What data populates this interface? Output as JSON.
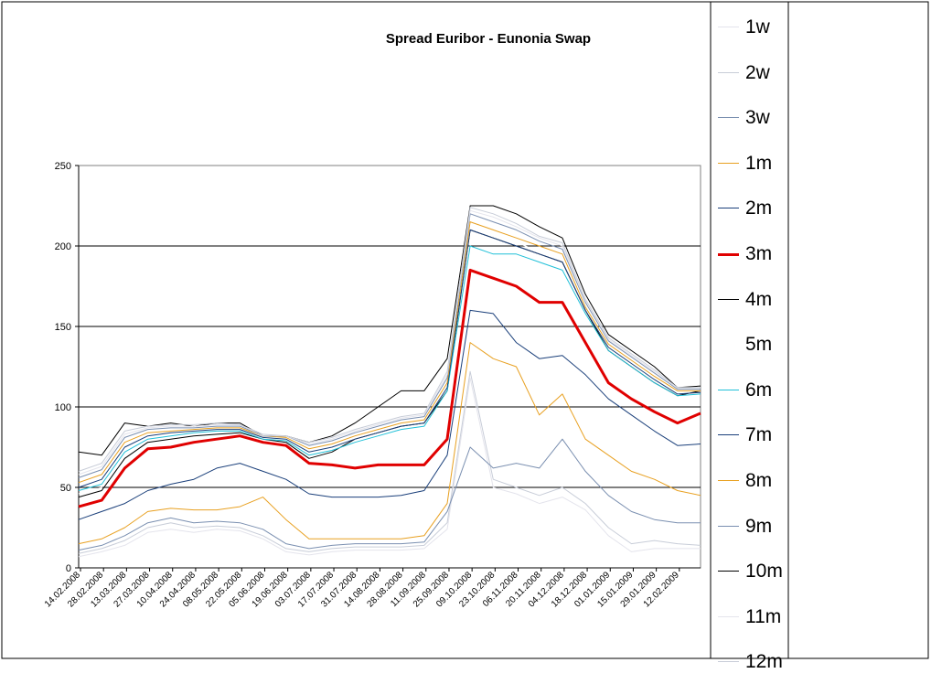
{
  "chart_data": {
    "type": "line",
    "title": "Spread Euribor - Eunonia Swap",
    "xlabel": "",
    "ylabel": "",
    "ylim": [
      0,
      250
    ],
    "yticks": [
      0,
      50,
      100,
      150,
      200,
      250
    ],
    "gridlines": [
      50,
      100,
      150,
      200
    ],
    "x_tick_labels": [
      "14.02.2008",
      "28.02.2008",
      "13.03.2008",
      "27.03.2008",
      "10.04.2008",
      "24.04.2008",
      "08.05.2008",
      "22.05.2008",
      "05.06.2008",
      "19.06.2008",
      "03.07.2008",
      "17.07.2008",
      "31.07.2008",
      "14.08.2008",
      "28.08.2008",
      "11.09.2008",
      "25.09.2008",
      "09.10.2008",
      "23.10.2008",
      "06.11.2008",
      "20.11.2008",
      "04.12.2008",
      "18.12.2008",
      "01.01.2009",
      "15.01.2009",
      "29.01.2009",
      "12.02.2009"
    ],
    "x_points": [
      0,
      1,
      2,
      3,
      4,
      5,
      6,
      7,
      8,
      9,
      10,
      11,
      12,
      13,
      14,
      15,
      16,
      17,
      18,
      19,
      20,
      21,
      22,
      23,
      24,
      25,
      26,
      27
    ],
    "series": [
      {
        "name": "1w",
        "color": "#e4e4ec",
        "width": 1,
        "values": [
          7,
          10,
          14,
          22,
          24,
          22,
          24,
          23,
          18,
          10,
          8,
          10,
          11,
          11,
          11,
          12,
          24,
          118,
          50,
          46,
          40,
          44,
          36,
          20,
          10,
          12,
          12,
          12
        ]
      },
      {
        "name": "2w",
        "color": "#c8cdd8",
        "width": 1,
        "values": [
          9,
          12,
          17,
          25,
          28,
          25,
          26,
          25,
          20,
          12,
          10,
          12,
          13,
          13,
          13,
          14,
          28,
          122,
          55,
          50,
          45,
          50,
          40,
          25,
          15,
          17,
          15,
          14
        ]
      },
      {
        "name": "3w",
        "color": "#7a8fb0",
        "width": 1,
        "values": [
          11,
          14,
          20,
          28,
          31,
          28,
          29,
          28,
          24,
          15,
          12,
          14,
          15,
          15,
          15,
          16,
          35,
          75,
          62,
          65,
          62,
          80,
          60,
          45,
          35,
          30,
          28,
          28
        ]
      },
      {
        "name": "1m",
        "color": "#e8a020",
        "width": 1,
        "values": [
          15,
          18,
          25,
          35,
          37,
          36,
          36,
          38,
          44,
          30,
          18,
          18,
          18,
          18,
          18,
          20,
          40,
          140,
          130,
          125,
          95,
          108,
          80,
          70,
          60,
          55,
          48,
          45
        ]
      },
      {
        "name": "2m",
        "color": "#1a3f7a",
        "width": 1,
        "values": [
          30,
          35,
          40,
          48,
          52,
          55,
          62,
          65,
          60,
          55,
          46,
          44,
          44,
          44,
          45,
          48,
          70,
          160,
          158,
          140,
          130,
          132,
          120,
          105,
          95,
          85,
          76,
          77
        ]
      },
      {
        "name": "3m",
        "color": "#e00000",
        "width": 3,
        "values": [
          38,
          42,
          62,
          74,
          75,
          78,
          80,
          82,
          78,
          76,
          65,
          64,
          62,
          64,
          64,
          64,
          80,
          185,
          180,
          175,
          165,
          165,
          140,
          115,
          105,
          97,
          90,
          96
        ]
      },
      {
        "name": "4m",
        "color": "#000000",
        "width": 1,
        "values": [
          44,
          48,
          68,
          78,
          80,
          82,
          83,
          84,
          80,
          78,
          68,
          72,
          80,
          84,
          88,
          90,
          110,
          210,
          205,
          200,
          195,
          190,
          160,
          135,
          125,
          115,
          107,
          110
        ]
      },
      {
        "name": "5m",
        "color": "#ffffff",
        "width": 1,
        "values": [
          46,
          50,
          70,
          80,
          82,
          84,
          85,
          85,
          81,
          79,
          70,
          74,
          82,
          86,
          90,
          92,
          112,
          212,
          207,
          202,
          197,
          192,
          162,
          137,
          127,
          117,
          109,
          112
        ]
      },
      {
        "name": "6m",
        "color": "#20c0d8",
        "width": 1,
        "values": [
          48,
          52,
          72,
          80,
          82,
          84,
          85,
          85,
          80,
          79,
          70,
          73,
          78,
          82,
          86,
          88,
          110,
          200,
          195,
          195,
          190,
          185,
          158,
          135,
          125,
          115,
          107,
          108
        ]
      },
      {
        "name": "7m",
        "color": "#1a3f7a",
        "width": 1,
        "values": [
          50,
          55,
          75,
          82,
          84,
          85,
          86,
          86,
          81,
          80,
          72,
          75,
          80,
          84,
          88,
          90,
          112,
          210,
          205,
          200,
          195,
          190,
          160,
          137,
          127,
          117,
          108,
          109
        ]
      },
      {
        "name": "8m",
        "color": "#e8a020",
        "width": 1,
        "values": [
          53,
          58,
          78,
          84,
          85,
          86,
          87,
          87,
          82,
          81,
          74,
          77,
          82,
          86,
          90,
          92,
          115,
          215,
          210,
          205,
          200,
          195,
          162,
          139,
          129,
          119,
          110,
          110
        ]
      },
      {
        "name": "9m",
        "color": "#7a8fb0",
        "width": 1,
        "values": [
          56,
          61,
          81,
          86,
          87,
          87,
          88,
          88,
          82,
          82,
          76,
          79,
          84,
          88,
          92,
          94,
          118,
          220,
          215,
          210,
          203,
          198,
          165,
          141,
          131,
          121,
          111,
          111
        ]
      },
      {
        "name": "10m",
        "color": "#000000",
        "width": 1,
        "values": [
          72,
          70,
          90,
          88,
          90,
          88,
          90,
          90,
          82,
          82,
          78,
          82,
          90,
          100,
          110,
          110,
          130,
          225,
          225,
          220,
          212,
          205,
          170,
          145,
          135,
          125,
          112,
          113
        ]
      },
      {
        "name": "11m",
        "color": "#e4e4ec",
        "width": 1,
        "values": [
          58,
          63,
          83,
          87,
          88,
          88,
          89,
          89,
          82,
          82,
          77,
          80,
          85,
          89,
          93,
          95,
          120,
          222,
          218,
          212,
          205,
          200,
          166,
          142,
          132,
          122,
          112,
          112
        ]
      },
      {
        "name": "12m",
        "color": "#c8cdd8",
        "width": 1,
        "values": [
          60,
          65,
          85,
          88,
          89,
          89,
          90,
          89,
          83,
          82,
          78,
          81,
          86,
          90,
          94,
          96,
          122,
          224,
          220,
          214,
          206,
          202,
          167,
          143,
          133,
          123,
          112,
          112
        ]
      }
    ],
    "legend_position": "right"
  }
}
